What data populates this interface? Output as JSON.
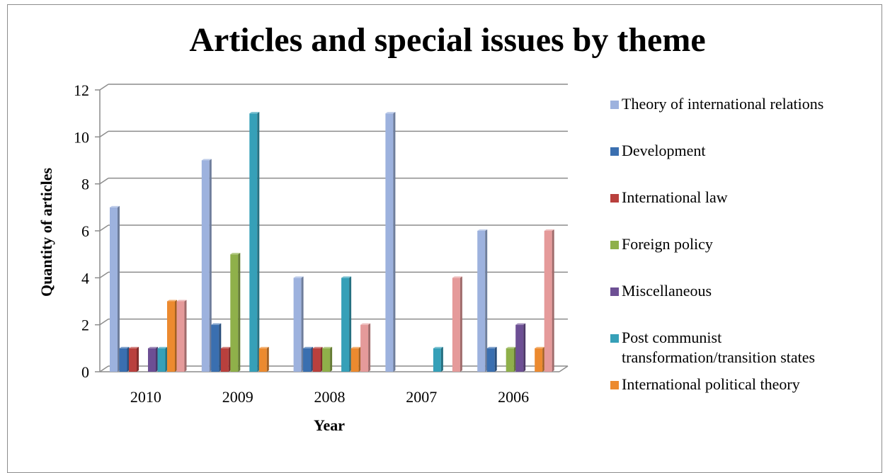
{
  "chart_data": {
    "type": "bar",
    "title": "Articles and special issues by theme",
    "xlabel": "Year",
    "ylabel": "Quantity of articles",
    "categories": [
      "2010",
      "2009",
      "2008",
      "2007",
      "2006"
    ],
    "ylim": [
      0,
      12
    ],
    "yticks": [
      0,
      2,
      4,
      6,
      8,
      10,
      12
    ],
    "grid": true,
    "legend_position": "right",
    "series": [
      {
        "name": "Theory of international relations",
        "color": "#9db2de",
        "values": [
          7,
          9,
          4,
          11,
          6
        ]
      },
      {
        "name": "Development",
        "color": "#3a6fb0",
        "values": [
          1,
          2,
          1,
          0,
          1
        ]
      },
      {
        "name": "International law",
        "color": "#b9403d",
        "values": [
          1,
          1,
          1,
          0,
          0
        ]
      },
      {
        "name": "Foreign policy",
        "color": "#8fb04a",
        "values": [
          0,
          5,
          1,
          0,
          1
        ]
      },
      {
        "name": "Miscellaneous",
        "color": "#6d4f94",
        "values": [
          1,
          0,
          0,
          0,
          2
        ]
      },
      {
        "name": "Post communist transformation/transition states",
        "legend_lines": [
          "Post communist",
          "transformation/transition states"
        ],
        "color": "#36a0b8",
        "values": [
          1,
          11,
          4,
          1,
          0
        ]
      },
      {
        "name": "International political theory",
        "color": "#ec8a2f",
        "values": [
          3,
          1,
          1,
          0,
          1
        ]
      },
      {
        "name": "",
        "color": "#e59a9a",
        "values": [
          3,
          0,
          2,
          4,
          6
        ]
      }
    ]
  }
}
